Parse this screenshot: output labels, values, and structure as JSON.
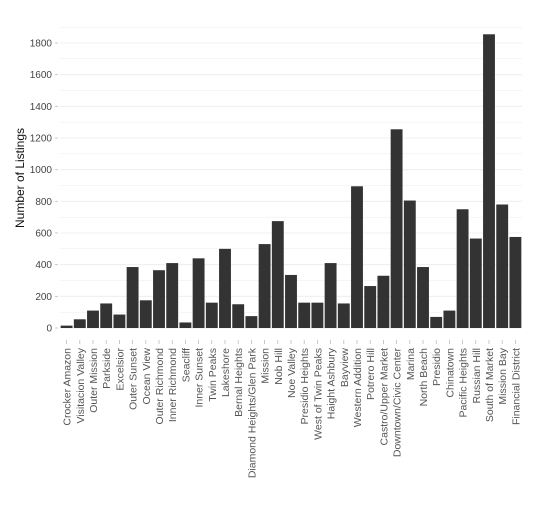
{
  "chart_data": {
    "type": "bar",
    "ylabel": "Number of Listings",
    "xlabel": "",
    "ylim": [
      0,
      1900
    ],
    "yticks": [
      0,
      200,
      400,
      600,
      800,
      1000,
      1200,
      1400,
      1600,
      1800
    ],
    "grid": true,
    "bar_color": "#333333",
    "grid_color": "#ebebeb",
    "categories": [
      "Crocker Amazon",
      "Visitacion Valley",
      "Outer Mission",
      "Parkside",
      "Excelsior",
      "Outer Sunset",
      "Ocean View",
      "Outer Richmond",
      "Inner Richmond",
      "Seacliff",
      "Inner Sunset",
      "Twin Peaks",
      "Lakeshore",
      "Bernal Heights",
      "Diamond Heights/Glen Park",
      "Mission",
      "Nob Hill",
      "Noe Valley",
      "Presidio Heights",
      "West of Twin Peaks",
      "Haight Ashbury",
      "Bayview",
      "Western Addition",
      "Potrero Hill",
      "Castro/Upper Market",
      "Downtown/Civic Center",
      "Marina",
      "North Beach",
      "Presidio",
      "Chinatown",
      "Pacific Heights",
      "Russian Hill",
      "South of Market",
      "Mission Bay",
      "Financial District"
    ],
    "values": [
      15,
      55,
      110,
      155,
      85,
      385,
      175,
      365,
      410,
      35,
      440,
      160,
      500,
      150,
      75,
      530,
      675,
      335,
      160,
      160,
      410,
      155,
      895,
      265,
      330,
      1255,
      805,
      385,
      70,
      110,
      750,
      565,
      1855,
      780,
      575
    ]
  }
}
